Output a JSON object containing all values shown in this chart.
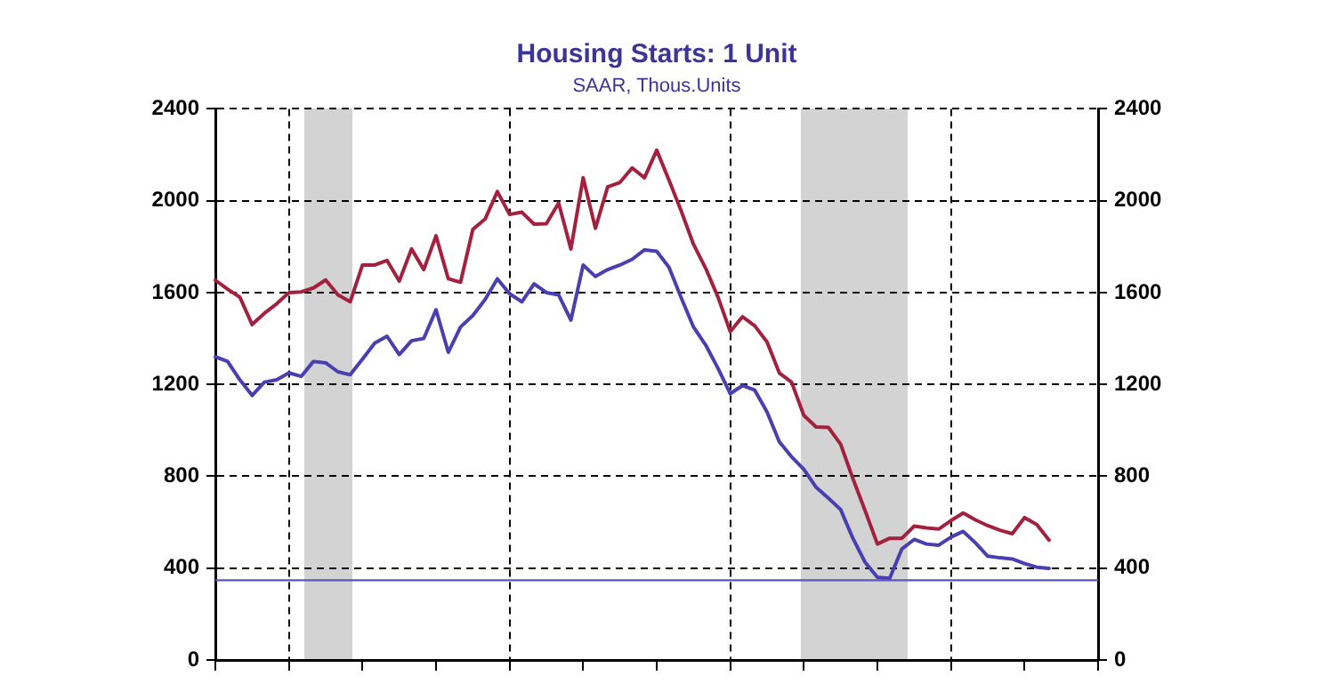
{
  "chart_data": {
    "type": "line",
    "title": "Housing Starts: 1 Unit",
    "subtitle": "SAAR, Thous.Units",
    "categories": [
      null,
      null,
      null,
      null,
      null,
      null,
      null,
      null,
      null,
      null,
      null,
      null,
      null,
      null,
      null,
      null,
      null,
      null,
      null,
      null,
      null,
      null,
      null,
      null,
      null,
      null,
      null,
      null,
      null,
      null,
      null,
      null,
      null,
      null,
      null,
      null,
      null,
      null,
      null,
      null,
      null,
      null,
      null,
      null,
      null,
      null,
      null,
      null,
      null,
      null,
      null,
      null,
      null,
      null,
      null,
      null,
      null,
      null,
      null,
      null,
      null,
      null,
      null,
      null,
      null,
      null,
      null,
      null,
      null,
      null,
      null,
      null,
      null
    ],
    "ylim": [
      0,
      2400
    ],
    "yticks": [
      0,
      400,
      800,
      1200,
      1600,
      2000,
      2400
    ],
    "y2lim": [
      0,
      2400
    ],
    "y2ticks": [
      0,
      400,
      800,
      1200,
      1600,
      2000,
      2400
    ],
    "tick_labels": "y",
    "grid": true,
    "legend": false,
    "marker": "none",
    "line_style": "solid",
    "ref_lines": [
      {
        "axis": "y",
        "value": 347,
        "color": "#5b55b8"
      }
    ],
    "series": [
      {
        "color": "#a3203f",
        "values": [
          1654,
          1615,
          1580,
          1461,
          1510,
          1551,
          1600,
          1603,
          1620,
          1655,
          1590,
          1560,
          1720,
          1720,
          1740,
          1650,
          1790,
          1700,
          1847,
          1660,
          1645,
          1875,
          1920,
          2040,
          1940,
          1950,
          1898,
          1900,
          1990,
          1790,
          2100,
          1880,
          2060,
          2080,
          2143,
          2100,
          2220,
          2090,
          1955,
          1810,
          1705,
          1580,
          1430,
          1495,
          1455,
          1385,
          1250,
          1210,
          1065,
          1015,
          1013,
          940,
          790,
          650,
          505,
          530,
          530,
          583,
          575,
          570,
          607,
          640,
          610,
          585,
          565,
          550,
          620,
          590,
          522,
          null,
          null,
          null,
          null
        ]
      },
      {
        "color": "#4a3fb0",
        "values": [
          1320,
          1300,
          1220,
          1152,
          1210,
          1220,
          1250,
          1235,
          1300,
          1294,
          1255,
          1242,
          1310,
          1380,
          1410,
          1330,
          1390,
          1400,
          1525,
          1340,
          1450,
          1500,
          1570,
          1660,
          1595,
          1560,
          1638,
          1600,
          1590,
          1480,
          1720,
          1670,
          1700,
          1720,
          1745,
          1786,
          1780,
          1710,
          1577,
          1450,
          1371,
          1270,
          1160,
          1195,
          1175,
          1080,
          950,
          885,
          830,
          752,
          705,
          655,
          530,
          425,
          360,
          355,
          484,
          525,
          505,
          500,
          535,
          560,
          510,
          452,
          445,
          440,
          420,
          404,
          399,
          null,
          null,
          null,
          null
        ]
      }
    ]
  }
}
